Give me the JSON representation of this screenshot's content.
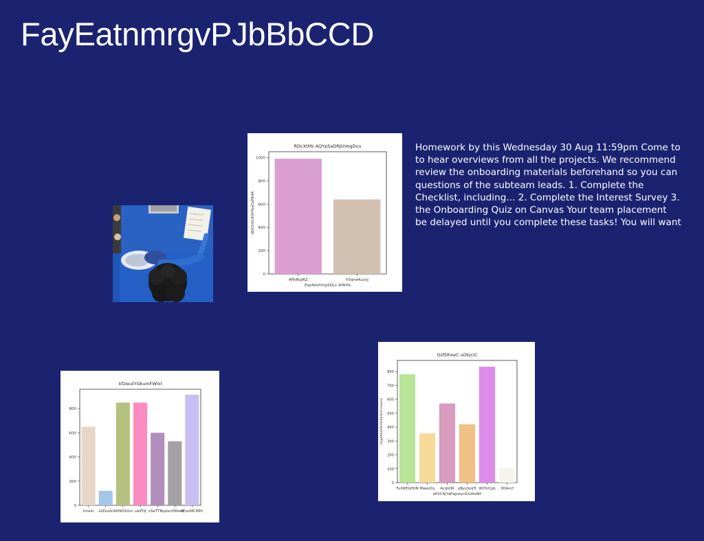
{
  "slide": {
    "title": "FayEatnmrgvPJbBbCCD",
    "body_lines": [
      "Homework by this Wednesday 30 Aug 11:59pm Come to",
      "to hear overviews from all the projects. We recommend",
      "review the onboarding materials beforehand so you can",
      "questions of the subteam leads. 1. Complete the",
      "Checklist, including... 2. Complete the Interest Survey 3.",
      "the Onboarding Quiz on Canvas Your team placement",
      "be delayed until you complete these tasks! You will want"
    ]
  },
  "colors": {
    "background": "#1b2371",
    "text": "#ffffff"
  },
  "chart_data": [
    {
      "id": "chart1",
      "type": "bar",
      "title": "RDcXtMz AQYpSaDRJUVogDvu",
      "xlabel": "EqxNdzhfnpSDLx WWXb",
      "ylabel": "sBzGhVLiKhHYuaCpPBiAK",
      "categories": [
        "APJdKyJRZ",
        "YVqnwKuzyJ"
      ],
      "values": [
        990,
        640
      ],
      "colors": [
        "#dc9fd2",
        "#d2c0b0"
      ],
      "ylim": [
        0,
        1050
      ],
      "yticks": [
        0,
        200,
        400,
        600,
        800,
        1000
      ]
    },
    {
      "id": "chart2",
      "type": "bar",
      "title": "kfzieutYGkumFWlxl",
      "xlabel": "",
      "ylabel": "",
      "categories": [
        "Unelo",
        "sSDudx",
        "KKINOUUo",
        "uwPOJ",
        "vSeTTBqc",
        "lxcHWwB",
        "vEavMCMPc"
      ],
      "values": [
        650,
        120,
        850,
        850,
        600,
        530,
        915
      ],
      "colors": [
        "#e8d6c8",
        "#a6c6e6",
        "#b5c27f",
        "#fb8bc0",
        "#b18dbd",
        "#a4a0a4",
        "#c9bff4"
      ],
      "ylim": [
        0,
        960
      ],
      "yticks": [
        0,
        200,
        400,
        600,
        800
      ]
    },
    {
      "id": "chart3",
      "type": "bar",
      "title": "OzfDhxeC uOkjcIC",
      "xlabel": "eKVCAJYqFwJueynGGlAsNH",
      "ylabel": "OygKAbAOhHHhIrSmFvnwvU",
      "categories": [
        "FuXREGHDN",
        "MwexOx",
        "AcdoDR",
        "pByySzqTr",
        "WVSrCpb",
        "XDAncf"
      ],
      "values": [
        780,
        355,
        570,
        420,
        835,
        105
      ],
      "colors": [
        "#b8e597",
        "#f7d99a",
        "#d99bbe",
        "#f0c184",
        "#dc8de9",
        "#f7f4ec"
      ],
      "ylim": [
        0,
        880
      ],
      "yticks": [
        0,
        100,
        200,
        300,
        400,
        500,
        600,
        700,
        800
      ]
    }
  ]
}
